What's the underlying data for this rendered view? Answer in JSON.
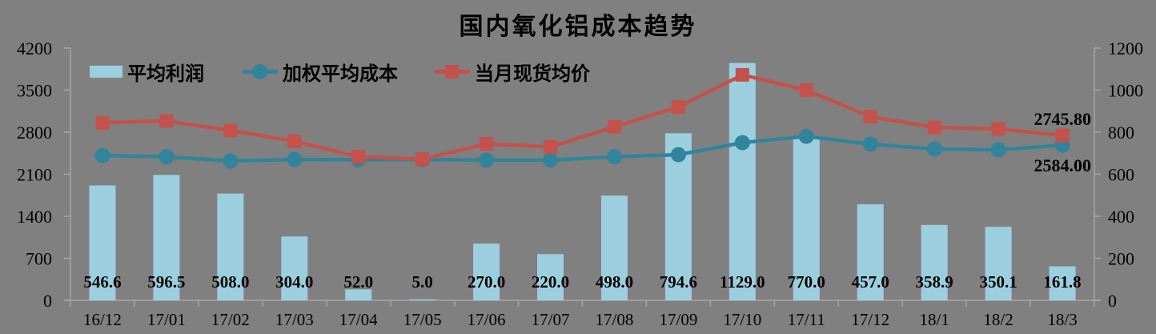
{
  "chart_data": {
    "type": "combo",
    "title": "国内氧化铝成本趋势",
    "categories": [
      "16/12",
      "17/01",
      "17/02",
      "17/03",
      "17/04",
      "17/05",
      "17/06",
      "17/07",
      "17/08",
      "17/09",
      "17/10",
      "17/11",
      "17/12",
      "18/1",
      "18/2",
      "18/3"
    ],
    "series": [
      {
        "name": "平均利润",
        "type": "bar",
        "axis": "right",
        "color": "#9ccfde",
        "values": [
          546.6,
          596.5,
          508.0,
          304.0,
          52.0,
          5.0,
          270.0,
          220.0,
          498.0,
          794.6,
          1129.0,
          770.0,
          457.0,
          358.9,
          350.1,
          161.8
        ],
        "labels": [
          "546.6",
          "596.5",
          "508.0",
          "304.0",
          "52.0",
          "5.0",
          "270.0",
          "220.0",
          "498.0",
          "794.6",
          "1129.0",
          "770.0",
          "457.0",
          "358.9",
          "350.1",
          "161.8"
        ]
      },
      {
        "name": "加权平均成本",
        "type": "line",
        "axis": "left",
        "marker": "circle",
        "color": "#31849b",
        "values": [
          2410,
          2390,
          2320,
          2345,
          2340,
          2345,
          2335,
          2335,
          2390,
          2425,
          2625,
          2730,
          2600,
          2520,
          2505,
          2584.0
        ]
      },
      {
        "name": "当月现货均价",
        "type": "line",
        "axis": "left",
        "marker": "square",
        "color": "#c5514c",
        "values": [
          2956.6,
          2986.5,
          2828.0,
          2649.0,
          2392.0,
          2350.0,
          2605.0,
          2555.0,
          2888.0,
          3219.6,
          3754.0,
          3500.0,
          3057.0,
          2878.9,
          2855.1,
          2745.8
        ]
      }
    ],
    "left_axis": {
      "min": 0,
      "max": 4200,
      "step": 700,
      "ticks": [
        "4200",
        "3500",
        "2800",
        "2100",
        "1400",
        "700",
        "0"
      ]
    },
    "right_axis": {
      "min": 0,
      "max": 1200,
      "step": 200,
      "ticks": [
        "1200",
        "1000",
        "800",
        "600",
        "400",
        "200",
        "0"
      ]
    },
    "end_labels": [
      {
        "series": "当月现货均价",
        "text": "2745.80",
        "color": "#ae3a33"
      },
      {
        "series": "加权平均成本",
        "text": "2584.00",
        "color": "#4bacc6"
      }
    ],
    "grid": false,
    "legend_position": "top-left",
    "background": "#808080",
    "axis_color": "#a6a6a6"
  }
}
